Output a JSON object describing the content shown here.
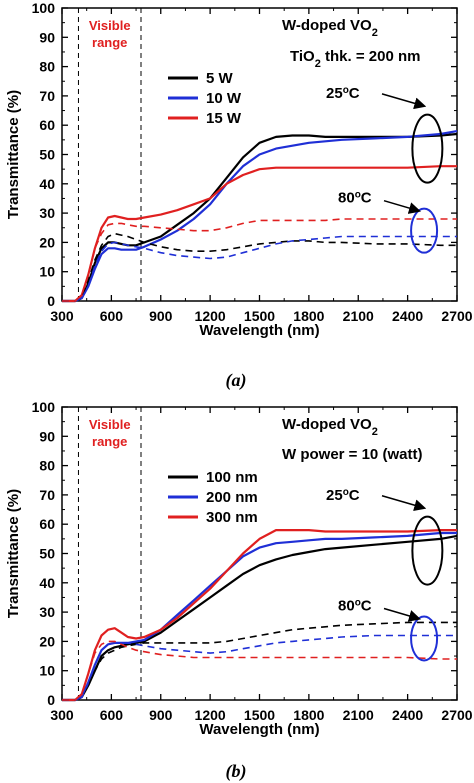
{
  "colors": {
    "black": "#000000",
    "blue": "#1f2fd6",
    "red": "#e02020"
  },
  "chart_data": [
    {
      "type": "line",
      "subcaption": "(a)",
      "title_lines": [
        "W-doped VO",
        "TiO",
        " thk. = 200 nm"
      ],
      "title_subscripts": [
        "2",
        "2"
      ],
      "xlabel": "Wavelength (nm)",
      "ylabel": "Transmittance (%)",
      "xlim": [
        300,
        2700
      ],
      "ylim": [
        0,
        100
      ],
      "xticks": [
        300,
        600,
        900,
        1200,
        1500,
        1800,
        2100,
        2400,
        2700
      ],
      "yticks": [
        0,
        10,
        20,
        30,
        40,
        50,
        60,
        70,
        80,
        90,
        100
      ],
      "visible_range_lines": [
        400,
        780
      ],
      "visible_label": [
        "Visible",
        "range"
      ],
      "annotation_25": "25",
      "annotation_80": "80",
      "degree_unit": "C",
      "legend": {
        "placement": "upper-left",
        "entries": [
          "5 W",
          "10 W",
          "15 W"
        ]
      },
      "series": [
        {
          "name": "5 W",
          "state": "25C",
          "color": "black",
          "dashed": false,
          "x": [
            300,
            380,
            420,
            460,
            500,
            540,
            580,
            620,
            660,
            700,
            750,
            800,
            900,
            1000,
            1100,
            1200,
            1300,
            1400,
            1500,
            1600,
            1700,
            1800,
            1900,
            2000,
            2200,
            2400,
            2600,
            2700
          ],
          "y": [
            0,
            0,
            1,
            6,
            13,
            18,
            20,
            20,
            19.5,
            19,
            19,
            20,
            22,
            26,
            30,
            35,
            42,
            49,
            54,
            56,
            56.5,
            56.5,
            56,
            56,
            56,
            56,
            56.5,
            57
          ]
        },
        {
          "name": "10 W",
          "state": "25C",
          "color": "blue",
          "dashed": false,
          "x": [
            300,
            380,
            420,
            460,
            500,
            540,
            580,
            620,
            660,
            700,
            750,
            800,
            900,
            1000,
            1100,
            1200,
            1300,
            1400,
            1500,
            1600,
            1700,
            1800,
            1900,
            2000,
            2200,
            2400,
            2600,
            2700
          ],
          "y": [
            0,
            0,
            1,
            5,
            11,
            16,
            18,
            18,
            17.5,
            17.5,
            17.5,
            18.5,
            21,
            24,
            28,
            33,
            40,
            46,
            50,
            52,
            53,
            54,
            54.5,
            55,
            55.5,
            56,
            57,
            58
          ]
        },
        {
          "name": "15 W",
          "state": "25C",
          "color": "red",
          "dashed": false,
          "x": [
            300,
            380,
            420,
            460,
            500,
            540,
            580,
            620,
            660,
            700,
            750,
            800,
            900,
            1000,
            1100,
            1200,
            1300,
            1400,
            1500,
            1600,
            1700,
            1800,
            1900,
            2000,
            2200,
            2400,
            2600,
            2700
          ],
          "y": [
            0,
            0,
            2,
            9,
            18,
            25,
            28.5,
            29,
            28.5,
            28,
            28,
            28.5,
            29.5,
            31,
            33,
            35,
            40,
            43,
            45,
            45.5,
            45.5,
            45.5,
            45.5,
            45.5,
            45.5,
            45.5,
            46,
            46
          ]
        },
        {
          "name": "5 W",
          "state": "80C",
          "color": "black",
          "dashed": true,
          "x": [
            300,
            380,
            420,
            460,
            500,
            540,
            580,
            620,
            660,
            700,
            750,
            800,
            900,
            1000,
            1100,
            1200,
            1300,
            1400,
            1500,
            1600,
            1700,
            1800,
            1900,
            2000,
            2200,
            2400,
            2600,
            2700
          ],
          "y": [
            0,
            0,
            1,
            7,
            14,
            19,
            22,
            23,
            22.5,
            22,
            21,
            20,
            18.5,
            17.5,
            17,
            17,
            17.5,
            18.5,
            19.5,
            20,
            20.5,
            20.5,
            20,
            20,
            19.5,
            19.5,
            19,
            19
          ]
        },
        {
          "name": "10 W",
          "state": "80C",
          "color": "blue",
          "dashed": true,
          "x": [
            300,
            380,
            420,
            460,
            500,
            540,
            580,
            620,
            660,
            700,
            750,
            800,
            900,
            1000,
            1100,
            1200,
            1300,
            1400,
            1500,
            1600,
            1700,
            1800,
            1900,
            2000,
            2200,
            2400,
            2600,
            2700
          ],
          "y": [
            0,
            0,
            1,
            5,
            12,
            17,
            19.5,
            20,
            19.5,
            19,
            18.5,
            18,
            16.5,
            15.5,
            15,
            14.5,
            15,
            16.5,
            18,
            19.5,
            20.5,
            21,
            21.5,
            22,
            22,
            22,
            22,
            22
          ]
        },
        {
          "name": "15 W",
          "state": "80C",
          "color": "red",
          "dashed": true,
          "x": [
            300,
            380,
            420,
            460,
            500,
            540,
            580,
            620,
            660,
            700,
            750,
            800,
            900,
            1000,
            1100,
            1200,
            1300,
            1400,
            1500,
            1600,
            1700,
            1800,
            1900,
            2000,
            2200,
            2400,
            2600,
            2700
          ],
          "y": [
            0,
            0,
            2,
            9,
            18,
            23,
            26,
            26.5,
            26.5,
            26,
            25.5,
            25.5,
            25,
            24.5,
            24,
            24,
            25,
            26.5,
            27.5,
            27.5,
            27.5,
            27.5,
            27.5,
            28,
            28,
            28,
            28,
            28
          ]
        }
      ]
    },
    {
      "type": "line",
      "subcaption": "(b)",
      "title_lines": [
        "W-doped VO",
        "W power = 10 (watt)"
      ],
      "title_subscripts": [
        "2"
      ],
      "xlabel": "Wavelength (nm)",
      "ylabel": "Transmittance (%)",
      "xlim": [
        300,
        2700
      ],
      "ylim": [
        0,
        100
      ],
      "xticks": [
        300,
        600,
        900,
        1200,
        1500,
        1800,
        2100,
        2400,
        2700
      ],
      "yticks": [
        0,
        10,
        20,
        30,
        40,
        50,
        60,
        70,
        80,
        90,
        100
      ],
      "visible_range_lines": [
        400,
        780
      ],
      "visible_label": [
        "Visible",
        "range"
      ],
      "annotation_25": "25",
      "annotation_80": "80",
      "degree_unit": "C",
      "legend": {
        "placement": "upper-left",
        "entries": [
          "100 nm",
          "200 nm",
          "300 nm"
        ]
      },
      "series": [
        {
          "name": "100 nm",
          "state": "25C",
          "color": "black",
          "dashed": false,
          "x": [
            300,
            380,
            420,
            460,
            500,
            540,
            580,
            620,
            660,
            700,
            750,
            800,
            900,
            1000,
            1100,
            1200,
            1300,
            1400,
            1500,
            1600,
            1700,
            1800,
            1900,
            2000,
            2200,
            2400,
            2600,
            2700
          ],
          "y": [
            0,
            0,
            1,
            5,
            10,
            15,
            17,
            18,
            18.5,
            19,
            19.5,
            20,
            23,
            27,
            31,
            35,
            39,
            43,
            46,
            48,
            49.5,
            50.5,
            51.5,
            52,
            53,
            54,
            55,
            56
          ]
        },
        {
          "name": "200 nm",
          "state": "25C",
          "color": "blue",
          "dashed": false,
          "x": [
            300,
            380,
            420,
            460,
            500,
            540,
            580,
            620,
            660,
            700,
            750,
            800,
            900,
            1000,
            1100,
            1200,
            1300,
            1400,
            1500,
            1600,
            1700,
            1800,
            1900,
            2000,
            2200,
            2400,
            2600,
            2700
          ],
          "y": [
            0,
            0,
            1,
            6,
            12,
            17,
            19,
            19.5,
            19.5,
            19.5,
            20,
            20.5,
            24,
            29,
            34,
            39,
            44,
            49,
            52,
            53.5,
            54,
            54.5,
            55,
            55,
            55.5,
            56,
            57,
            57
          ]
        },
        {
          "name": "300 nm",
          "state": "25C",
          "color": "red",
          "dashed": false,
          "x": [
            300,
            380,
            420,
            460,
            500,
            540,
            580,
            620,
            660,
            700,
            750,
            800,
            900,
            1000,
            1100,
            1200,
            1300,
            1400,
            1500,
            1600,
            1700,
            1800,
            1900,
            2000,
            2200,
            2400,
            2600,
            2700
          ],
          "y": [
            0,
            0,
            2,
            9,
            17,
            22,
            24,
            24.5,
            23,
            21.5,
            21,
            21.5,
            24,
            28,
            33,
            38,
            44,
            50,
            55,
            58,
            58,
            58,
            57.5,
            57.5,
            57.5,
            57.5,
            58,
            58
          ]
        },
        {
          "name": "100 nm",
          "state": "80C",
          "color": "black",
          "dashed": true,
          "x": [
            300,
            380,
            420,
            460,
            500,
            540,
            580,
            620,
            660,
            700,
            750,
            800,
            900,
            1000,
            1100,
            1200,
            1300,
            1400,
            1500,
            1600,
            1700,
            1800,
            1900,
            2000,
            2200,
            2400,
            2600,
            2700
          ],
          "y": [
            0,
            0,
            1,
            5,
            10,
            14,
            16,
            17,
            18,
            18.5,
            19,
            19.5,
            19.5,
            19.5,
            19.5,
            19.5,
            20,
            21,
            22,
            23,
            24,
            24.5,
            25,
            25.5,
            26,
            26.5,
            26.5,
            26.5
          ]
        },
        {
          "name": "200 nm",
          "state": "80C",
          "color": "blue",
          "dashed": true,
          "x": [
            300,
            380,
            420,
            460,
            500,
            540,
            580,
            620,
            660,
            700,
            750,
            800,
            900,
            1000,
            1100,
            1200,
            1300,
            1400,
            1500,
            1600,
            1700,
            1800,
            1900,
            2000,
            2200,
            2400,
            2600,
            2700
          ],
          "y": [
            0,
            0,
            1,
            6,
            12,
            17,
            19,
            19.5,
            19.5,
            19.5,
            19,
            18.5,
            17.5,
            17,
            16.5,
            16,
            16.5,
            17.5,
            18.5,
            19.5,
            20,
            20.5,
            21,
            21.5,
            22,
            22,
            22,
            22
          ]
        },
        {
          "name": "300 nm",
          "state": "80C",
          "color": "red",
          "dashed": true,
          "x": [
            300,
            380,
            420,
            460,
            500,
            540,
            580,
            620,
            660,
            700,
            750,
            800,
            900,
            1000,
            1100,
            1200,
            1300,
            1400,
            1500,
            1600,
            1700,
            1800,
            1900,
            2000,
            2200,
            2400,
            2600,
            2700
          ],
          "y": [
            0,
            0,
            2,
            9,
            16,
            19,
            20,
            20,
            19,
            18,
            17,
            16.5,
            15.5,
            15,
            14.5,
            14.5,
            14.5,
            14.5,
            14.5,
            14.5,
            14.5,
            14.5,
            14.5,
            14.5,
            14.5,
            14.5,
            14,
            14
          ]
        }
      ]
    }
  ]
}
